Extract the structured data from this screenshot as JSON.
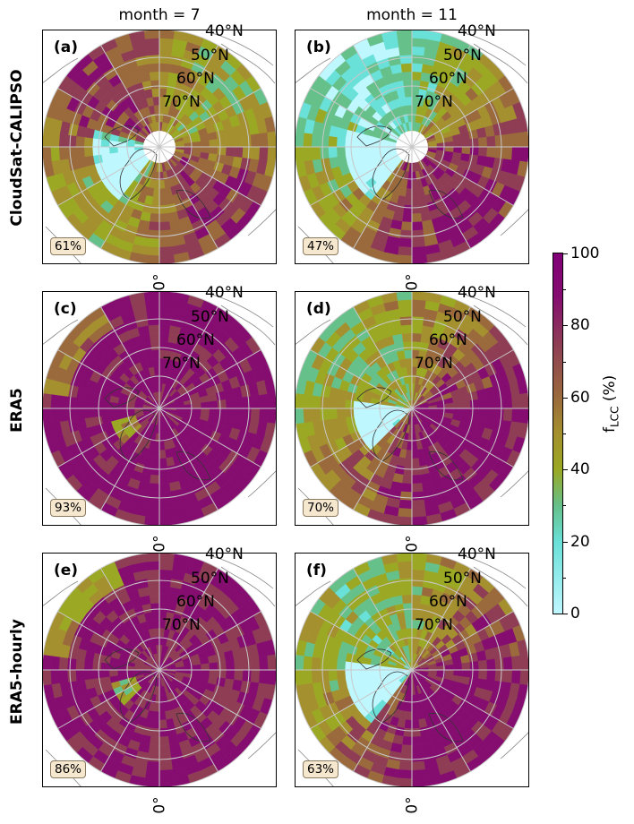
{
  "columns": [
    "month = 7",
    "month = 11"
  ],
  "rows": [
    "CloudSat-CALIPSO",
    "ERA5",
    "ERA5-hourly"
  ],
  "panels": [
    {
      "id": "a",
      "label": "(a)",
      "badge": "61%"
    },
    {
      "id": "b",
      "label": "(b)",
      "badge": "47%"
    },
    {
      "id": "c",
      "label": "(c)",
      "badge": "93%"
    },
    {
      "id": "d",
      "label": "(d)",
      "badge": "70%"
    },
    {
      "id": "e",
      "label": "(e)",
      "badge": "86%"
    },
    {
      "id": "f",
      "label": "(f)",
      "badge": "63%"
    }
  ],
  "latitude_labels": [
    "40°N",
    "50°N",
    "60°N",
    "70°N"
  ],
  "longitude_label": "0°",
  "colorbar": {
    "title": "f",
    "title_subscript": "LCC",
    "title_suffix": " (%)",
    "ticks": [
      "0",
      "20",
      "40",
      "60",
      "80",
      "100"
    ],
    "range": [
      0,
      100
    ],
    "colors": [
      "#bff7ff",
      "#69e0d8",
      "#66c08a",
      "#9aa823",
      "#a4902e",
      "#9a6a3c",
      "#8e3d55",
      "#850d70",
      "#810078"
    ]
  }
}
